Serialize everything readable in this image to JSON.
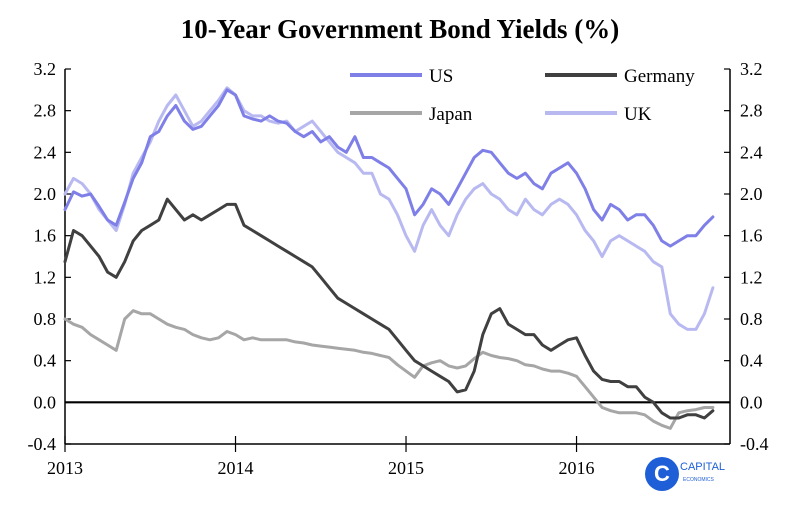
{
  "chart_data": {
    "type": "line",
    "title": "10-Year Government Bond Yields (%)",
    "xlabel": "",
    "ylabel": "",
    "xlim": [
      2013.0,
      2016.9
    ],
    "ylim": [
      -0.4,
      3.2
    ],
    "yticks": [
      "3.2",
      "2.8",
      "2.4",
      "2.0",
      "1.6",
      "1.2",
      "0.8",
      "0.4",
      "0.0",
      "-0.4"
    ],
    "ytick_values": [
      3.2,
      2.8,
      2.4,
      2.0,
      1.6,
      1.2,
      0.8,
      0.4,
      0.0,
      -0.4
    ],
    "xticks": [
      "2013",
      "2014",
      "2015",
      "2016"
    ],
    "xtick_values": [
      2013,
      2014,
      2015,
      2016
    ],
    "grid": false,
    "legend_position": "top",
    "series": [
      {
        "name": "US",
        "color": "#7f7fe8",
        "x": [
          2013.0,
          2013.05,
          2013.1,
          2013.15,
          2013.2,
          2013.25,
          2013.3,
          2013.35,
          2013.4,
          2013.45,
          2013.5,
          2013.55,
          2013.6,
          2013.65,
          2013.7,
          2013.75,
          2013.8,
          2013.85,
          2013.9,
          2013.95,
          2014.0,
          2014.05,
          2014.1,
          2014.15,
          2014.2,
          2014.25,
          2014.3,
          2014.35,
          2014.4,
          2014.45,
          2014.5,
          2014.55,
          2014.6,
          2014.65,
          2014.7,
          2014.75,
          2014.8,
          2014.85,
          2014.9,
          2014.95,
          2015.0,
          2015.05,
          2015.1,
          2015.15,
          2015.2,
          2015.25,
          2015.3,
          2015.35,
          2015.4,
          2015.45,
          2015.5,
          2015.55,
          2015.6,
          2015.65,
          2015.7,
          2015.75,
          2015.8,
          2015.85,
          2015.9,
          2015.95,
          2016.0,
          2016.05,
          2016.1,
          2016.15,
          2016.2,
          2016.25,
          2016.3,
          2016.35,
          2016.4,
          2016.45,
          2016.5,
          2016.55,
          2016.6,
          2016.65,
          2016.7,
          2016.75,
          2016.8
        ],
        "values": [
          1.85,
          2.02,
          1.98,
          2.0,
          1.88,
          1.75,
          1.7,
          1.92,
          2.15,
          2.3,
          2.55,
          2.6,
          2.75,
          2.85,
          2.7,
          2.62,
          2.65,
          2.75,
          2.85,
          3.0,
          2.95,
          2.75,
          2.72,
          2.7,
          2.75,
          2.7,
          2.68,
          2.6,
          2.55,
          2.6,
          2.5,
          2.55,
          2.45,
          2.4,
          2.55,
          2.35,
          2.35,
          2.3,
          2.25,
          2.15,
          2.05,
          1.8,
          1.9,
          2.05,
          2.0,
          1.9,
          2.05,
          2.2,
          2.35,
          2.42,
          2.4,
          2.3,
          2.2,
          2.15,
          2.2,
          2.1,
          2.05,
          2.2,
          2.25,
          2.3,
          2.2,
          2.05,
          1.85,
          1.75,
          1.9,
          1.85,
          1.75,
          1.8,
          1.8,
          1.7,
          1.55,
          1.5,
          1.55,
          1.6,
          1.6,
          1.7,
          1.78
        ]
      },
      {
        "name": "Germany",
        "color": "#404040",
        "x": [
          2013.0,
          2013.05,
          2013.1,
          2013.15,
          2013.2,
          2013.25,
          2013.3,
          2013.35,
          2013.4,
          2013.45,
          2013.5,
          2013.55,
          2013.6,
          2013.65,
          2013.7,
          2013.75,
          2013.8,
          2013.85,
          2013.9,
          2013.95,
          2014.0,
          2014.05,
          2014.1,
          2014.15,
          2014.2,
          2014.25,
          2014.3,
          2014.35,
          2014.4,
          2014.45,
          2014.5,
          2014.55,
          2014.6,
          2014.65,
          2014.7,
          2014.75,
          2014.8,
          2014.85,
          2014.9,
          2014.95,
          2015.0,
          2015.05,
          2015.1,
          2015.15,
          2015.2,
          2015.25,
          2015.3,
          2015.35,
          2015.4,
          2015.45,
          2015.5,
          2015.55,
          2015.6,
          2015.65,
          2015.7,
          2015.75,
          2015.8,
          2015.85,
          2015.9,
          2015.95,
          2016.0,
          2016.05,
          2016.1,
          2016.15,
          2016.2,
          2016.25,
          2016.3,
          2016.35,
          2016.4,
          2016.45,
          2016.5,
          2016.55,
          2016.6,
          2016.65,
          2016.7,
          2016.75,
          2016.8
        ],
        "values": [
          1.35,
          1.65,
          1.6,
          1.5,
          1.4,
          1.25,
          1.2,
          1.35,
          1.55,
          1.65,
          1.7,
          1.75,
          1.95,
          1.85,
          1.75,
          1.8,
          1.75,
          1.8,
          1.85,
          1.9,
          1.9,
          1.7,
          1.65,
          1.6,
          1.55,
          1.5,
          1.45,
          1.4,
          1.35,
          1.3,
          1.2,
          1.1,
          1.0,
          0.95,
          0.9,
          0.85,
          0.8,
          0.75,
          0.7,
          0.6,
          0.5,
          0.4,
          0.35,
          0.3,
          0.25,
          0.2,
          0.1,
          0.12,
          0.3,
          0.65,
          0.85,
          0.9,
          0.75,
          0.7,
          0.65,
          0.65,
          0.55,
          0.5,
          0.55,
          0.6,
          0.62,
          0.45,
          0.3,
          0.22,
          0.2,
          0.2,
          0.15,
          0.15,
          0.05,
          0.0,
          -0.1,
          -0.15,
          -0.15,
          -0.12,
          -0.12,
          -0.15,
          -0.08
        ]
      },
      {
        "name": "Japan",
        "color": "#a6a6a6",
        "x": [
          2013.0,
          2013.05,
          2013.1,
          2013.15,
          2013.2,
          2013.25,
          2013.3,
          2013.35,
          2013.4,
          2013.45,
          2013.5,
          2013.55,
          2013.6,
          2013.65,
          2013.7,
          2013.75,
          2013.8,
          2013.85,
          2013.9,
          2013.95,
          2014.0,
          2014.05,
          2014.1,
          2014.15,
          2014.2,
          2014.25,
          2014.3,
          2014.35,
          2014.4,
          2014.45,
          2014.5,
          2014.55,
          2014.6,
          2014.65,
          2014.7,
          2014.75,
          2014.8,
          2014.85,
          2014.9,
          2014.95,
          2015.0,
          2015.05,
          2015.1,
          2015.15,
          2015.2,
          2015.25,
          2015.3,
          2015.35,
          2015.4,
          2015.45,
          2015.5,
          2015.55,
          2015.6,
          2015.65,
          2015.7,
          2015.75,
          2015.8,
          2015.85,
          2015.9,
          2015.95,
          2016.0,
          2016.05,
          2016.1,
          2016.15,
          2016.2,
          2016.25,
          2016.3,
          2016.35,
          2016.4,
          2016.45,
          2016.5,
          2016.55,
          2016.6,
          2016.65,
          2016.7,
          2016.75,
          2016.8
        ],
        "values": [
          0.8,
          0.75,
          0.72,
          0.65,
          0.6,
          0.55,
          0.5,
          0.8,
          0.88,
          0.85,
          0.85,
          0.8,
          0.75,
          0.72,
          0.7,
          0.65,
          0.62,
          0.6,
          0.62,
          0.68,
          0.65,
          0.6,
          0.62,
          0.6,
          0.6,
          0.6,
          0.6,
          0.58,
          0.57,
          0.55,
          0.54,
          0.53,
          0.52,
          0.51,
          0.5,
          0.48,
          0.47,
          0.45,
          0.43,
          0.36,
          0.3,
          0.24,
          0.35,
          0.38,
          0.4,
          0.35,
          0.33,
          0.35,
          0.42,
          0.48,
          0.45,
          0.43,
          0.42,
          0.4,
          0.36,
          0.35,
          0.32,
          0.3,
          0.3,
          0.28,
          0.25,
          0.15,
          0.05,
          -0.05,
          -0.08,
          -0.1,
          -0.1,
          -0.1,
          -0.12,
          -0.18,
          -0.22,
          -0.25,
          -0.1,
          -0.08,
          -0.07,
          -0.05,
          -0.05
        ]
      },
      {
        "name": "UK",
        "color": "#b9b9f2",
        "x": [
          2013.0,
          2013.05,
          2013.1,
          2013.15,
          2013.2,
          2013.25,
          2013.3,
          2013.35,
          2013.4,
          2013.45,
          2013.5,
          2013.55,
          2013.6,
          2013.65,
          2013.7,
          2013.75,
          2013.8,
          2013.85,
          2013.9,
          2013.95,
          2014.0,
          2014.05,
          2014.1,
          2014.15,
          2014.2,
          2014.25,
          2014.3,
          2014.35,
          2014.4,
          2014.45,
          2014.5,
          2014.55,
          2014.6,
          2014.65,
          2014.7,
          2014.75,
          2014.8,
          2014.85,
          2014.9,
          2014.95,
          2015.0,
          2015.05,
          2015.1,
          2015.15,
          2015.2,
          2015.25,
          2015.3,
          2015.35,
          2015.4,
          2015.45,
          2015.5,
          2015.55,
          2015.6,
          2015.65,
          2015.7,
          2015.75,
          2015.8,
          2015.85,
          2015.9,
          2015.95,
          2016.0,
          2016.05,
          2016.1,
          2016.15,
          2016.2,
          2016.25,
          2016.3,
          2016.35,
          2016.4,
          2016.45,
          2016.5,
          2016.55,
          2016.6,
          2016.65,
          2016.7,
          2016.75,
          2016.8
        ],
        "values": [
          2.0,
          2.15,
          2.1,
          2.0,
          1.85,
          1.75,
          1.65,
          1.9,
          2.2,
          2.35,
          2.5,
          2.7,
          2.85,
          2.95,
          2.8,
          2.65,
          2.7,
          2.8,
          2.9,
          3.02,
          2.95,
          2.8,
          2.75,
          2.75,
          2.7,
          2.68,
          2.7,
          2.6,
          2.65,
          2.7,
          2.6,
          2.5,
          2.4,
          2.35,
          2.3,
          2.2,
          2.2,
          2.0,
          1.95,
          1.8,
          1.6,
          1.45,
          1.7,
          1.85,
          1.7,
          1.6,
          1.8,
          1.95,
          2.05,
          2.1,
          2.0,
          1.95,
          1.85,
          1.8,
          1.95,
          1.85,
          1.8,
          1.9,
          1.95,
          1.9,
          1.8,
          1.65,
          1.55,
          1.4,
          1.55,
          1.6,
          1.55,
          1.5,
          1.45,
          1.35,
          1.3,
          0.85,
          0.75,
          0.7,
          0.7,
          0.85,
          1.1
        ]
      }
    ]
  },
  "logo": {
    "letter": "C",
    "line1": "CAPITAL",
    "line2": "ECONOMICS",
    "color": "#1e5fd7"
  }
}
